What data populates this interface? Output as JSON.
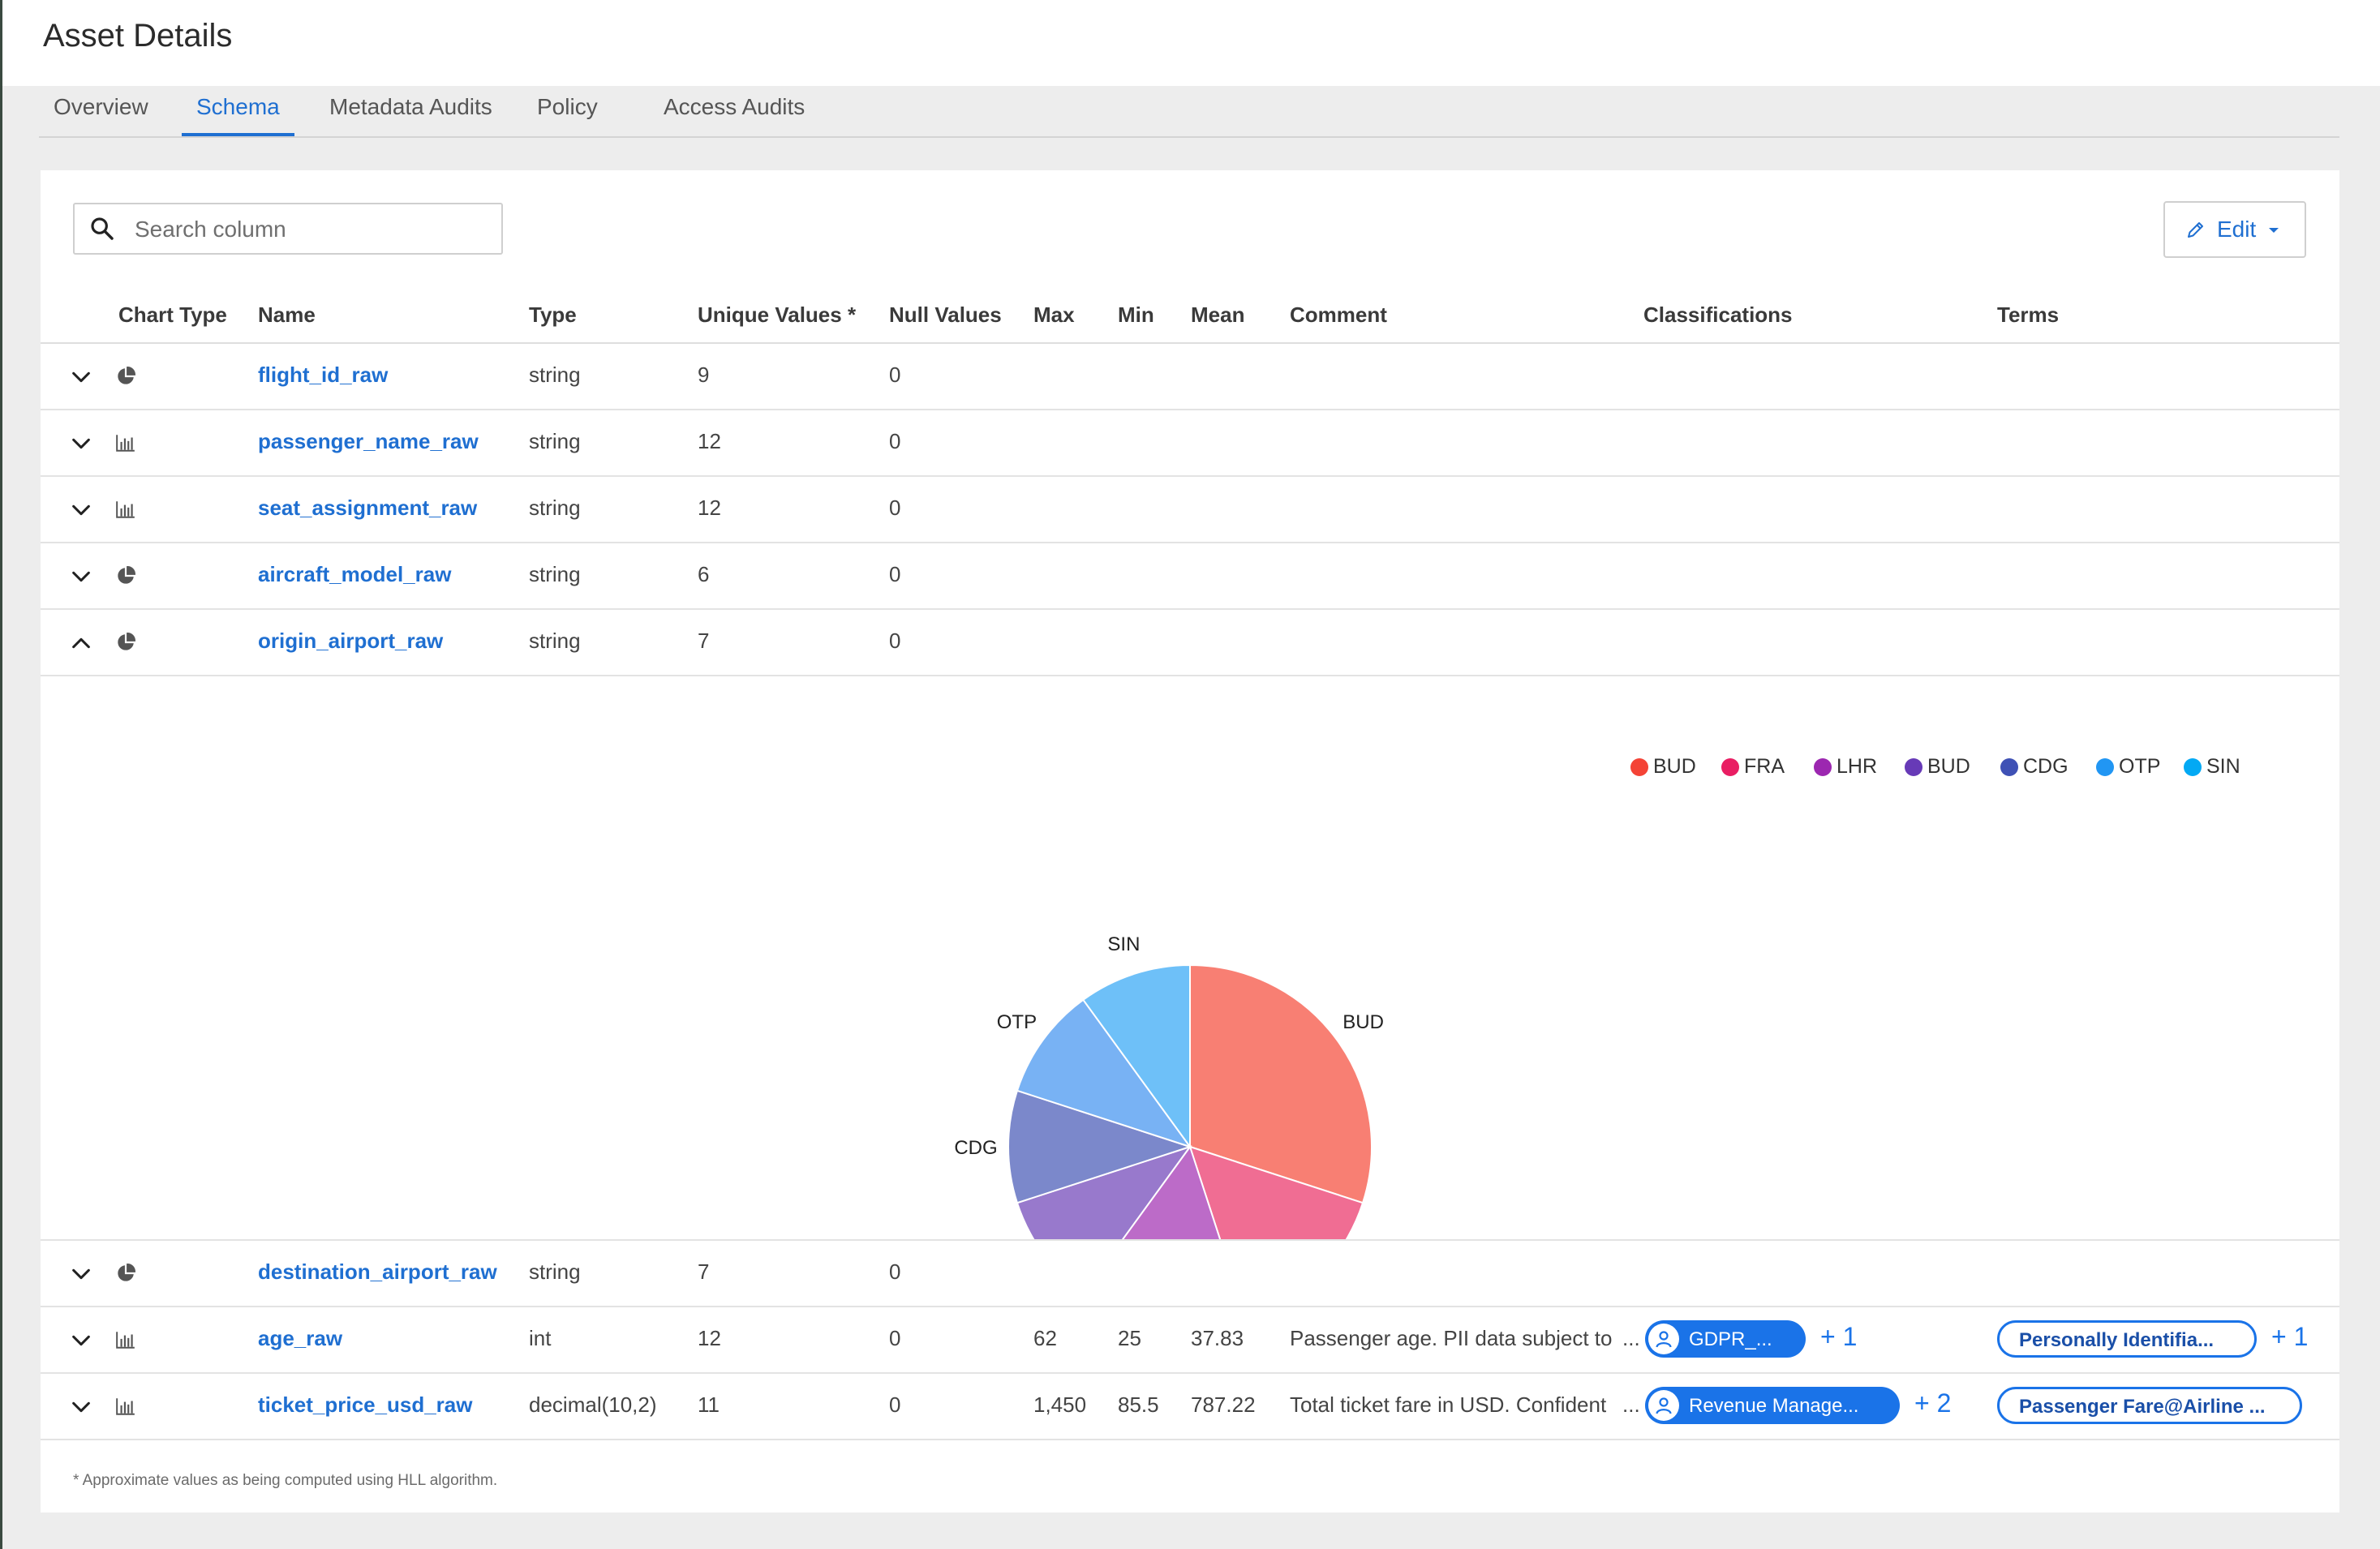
{
  "page": {
    "title": "Asset Details"
  },
  "tabs": [
    "Overview",
    "Schema",
    "Metadata Audits",
    "Policy",
    "Access Audits"
  ],
  "active_tab": "Schema",
  "search": {
    "placeholder": "Search column",
    "value": ""
  },
  "edit_button": {
    "label": "Edit"
  },
  "columns": [
    "Chart Type",
    "Name",
    "Type",
    "Unique Values *",
    "Null Values",
    "Max",
    "Min",
    "Mean",
    "Comment",
    "Classifications",
    "Terms"
  ],
  "rows": [
    {
      "chart_type": "pie-chart-icon",
      "expanded": false,
      "name": "flight_id_raw",
      "type": "string",
      "unique": "9",
      "nulls": "0"
    },
    {
      "chart_type": "bar-chart-icon",
      "expanded": false,
      "name": "passenger_name_raw",
      "type": "string",
      "unique": "12",
      "nulls": "0"
    },
    {
      "chart_type": "bar-chart-icon",
      "expanded": false,
      "name": "seat_assignment_raw",
      "type": "string",
      "unique": "12",
      "nulls": "0"
    },
    {
      "chart_type": "pie-chart-icon",
      "expanded": false,
      "name": "aircraft_model_raw",
      "type": "string",
      "unique": "6",
      "nulls": "0"
    },
    {
      "chart_type": "pie-chart-icon",
      "expanded": true,
      "name": "origin_airport_raw",
      "type": "string",
      "unique": "7",
      "nulls": "0"
    },
    {
      "chart_type": "pie-chart-icon",
      "expanded": false,
      "name": "destination_airport_raw",
      "type": "string",
      "unique": "7",
      "nulls": "0"
    },
    {
      "chart_type": "bar-chart-icon",
      "expanded": false,
      "name": "age_raw",
      "type": "int",
      "unique": "12",
      "nulls": "0",
      "max": "62",
      "min": "25",
      "mean": "37.83",
      "comment": "Passenger age. PII data subject to",
      "ellipsis": "...",
      "classification": "GDPR_...",
      "classification_more": "+ 1",
      "term": "Personally Identifia...",
      "term_more": "+ 1"
    },
    {
      "chart_type": "bar-chart-icon",
      "expanded": false,
      "name": "ticket_price_usd_raw",
      "type": "decimal(10,2)",
      "unique": "11",
      "nulls": "0",
      "max": "1,450",
      "min": "85.5",
      "mean": "787.22",
      "comment": "Total ticket fare in USD. Confident",
      "ellipsis": "...",
      "classification": "Revenue Manage...",
      "classification_more": "+ 2",
      "term": "Passenger Fare@Airline ..."
    }
  ],
  "chart_data": {
    "type": "pie",
    "slices": [
      {
        "label": "BUD",
        "value": 3,
        "color": "#f87f73"
      },
      {
        "label": "FRA",
        "value": 1.5,
        "color": "#f06d93"
      },
      {
        "label": "LHR",
        "value": 1.5,
        "color": "#bc6bc8"
      },
      {
        "label": "BUD",
        "value": 1,
        "color": "#9879cc"
      },
      {
        "label": "CDG",
        "value": 1,
        "color": "#7b88cb"
      },
      {
        "label": "OTP",
        "value": 1,
        "color": "#78b2f4"
      },
      {
        "label": "SIN",
        "value": 1,
        "color": "#6ec0f8"
      }
    ],
    "legend": [
      {
        "label": "BUD",
        "color": "#f44336"
      },
      {
        "label": "FRA",
        "color": "#e91e63"
      },
      {
        "label": "LHR",
        "color": "#9c27b0"
      },
      {
        "label": "BUD",
        "color": "#673ab7"
      },
      {
        "label": "CDG",
        "color": "#3f51b5"
      },
      {
        "label": "OTP",
        "color": "#2196f3"
      },
      {
        "label": "SIN",
        "color": "#03a9f4"
      }
    ],
    "legend_position": "top-right"
  },
  "footnote": "* Approximate values as being computed using HLL algorithm.",
  "colors": {
    "link": "#1f6fd1",
    "pill": "#1a73e8"
  }
}
